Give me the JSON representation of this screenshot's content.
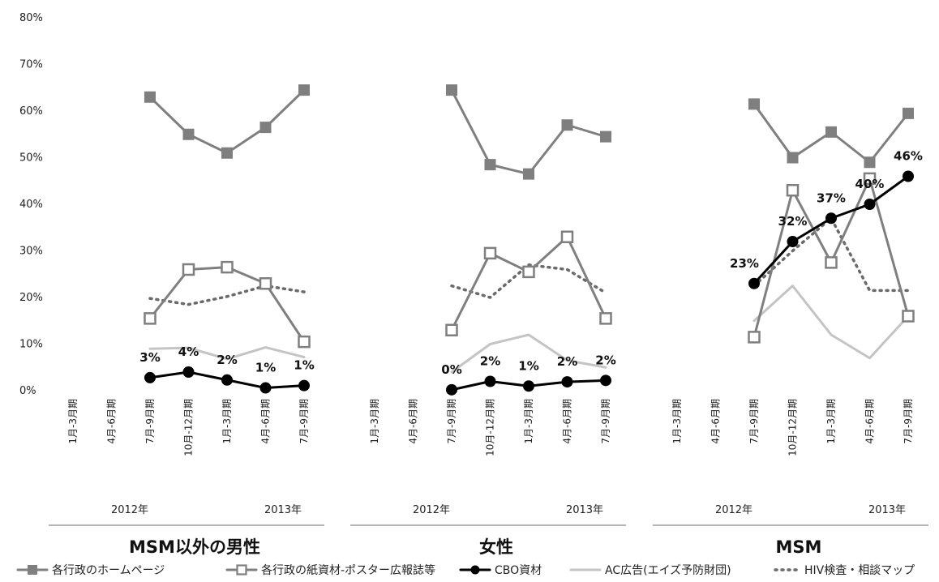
{
  "chart_data": {
    "type": "line",
    "y_axis": {
      "ylim": [
        0,
        80
      ],
      "ticks": [
        "80%",
        "70%",
        "60%",
        "50%",
        "40%",
        "30%",
        "20%",
        "10%",
        "0%"
      ]
    },
    "categories": [
      "1月-3月期",
      "4月-6月期",
      "7月-9月期",
      "10月-12月期",
      "1月-3月期",
      "4月-6月期",
      "7月-9月期"
    ],
    "years": [
      "2012年",
      "2013年"
    ],
    "legend": [
      "各行政のホームページ",
      "各行政の紙資材-ポスター広報誌等",
      "CBO資材",
      "AC広告(エイズ予防財団)",
      "HIV検査・相談マップ"
    ],
    "panels": [
      {
        "title": "MSM以外の男性",
        "series": [
          {
            "name": "各行政のホームページ",
            "values": [
              null,
              null,
              63,
              55,
              51,
              56.5,
              64.5
            ]
          },
          {
            "name": "各行政の紙資材-ポスター広報誌等",
            "values": [
              null,
              null,
              15.5,
              26,
              26.5,
              23,
              10.5
            ]
          },
          {
            "name": "CBO資材",
            "values": [
              null,
              null,
              2.8,
              4,
              2.3,
              0.6,
              1.1
            ],
            "labels": [
              "",
              "",
              "3%",
              "4%",
              "2%",
              "1%",
              "1%"
            ]
          },
          {
            "name": "AC広告(エイズ予防財団)",
            "values": [
              null,
              null,
              9,
              9.2,
              6.8,
              9.3,
              7.2
            ]
          },
          {
            "name": "HIV検査・相談マップ",
            "values": [
              null,
              null,
              19.8,
              18.5,
              20.2,
              22.5,
              21.2
            ]
          }
        ]
      },
      {
        "title": "女性",
        "series": [
          {
            "name": "各行政のホームページ",
            "values": [
              null,
              null,
              64.5,
              48.5,
              46.5,
              57,
              54.5
            ]
          },
          {
            "name": "各行政の紙資材-ポスター広報誌等",
            "values": [
              null,
              null,
              13,
              29.5,
              25.5,
              33,
              15.5
            ]
          },
          {
            "name": "CBO資材",
            "values": [
              null,
              null,
              0.2,
              2,
              1,
              1.9,
              2.2
            ],
            "labels": [
              "",
              "",
              "0%",
              "2%",
              "1%",
              "2%",
              "2%"
            ]
          },
          {
            "name": "AC広告(エイズ予防財団)",
            "values": [
              null,
              null,
              4,
              10,
              12,
              6.5,
              5
            ]
          },
          {
            "name": "HIV検査・相談マップ",
            "values": [
              null,
              null,
              22.5,
              20,
              27,
              26,
              21
            ]
          }
        ]
      },
      {
        "title": "MSM",
        "series": [
          {
            "name": "各行政のホームページ",
            "values": [
              null,
              null,
              61.5,
              50,
              55.5,
              49,
              59.5
            ]
          },
          {
            "name": "各行政の紙資材-ポスター広報誌等",
            "values": [
              null,
              null,
              11.5,
              43,
              27.5,
              45.5,
              16
            ]
          },
          {
            "name": "CBO資材",
            "values": [
              null,
              null,
              23,
              32,
              37,
              40,
              46
            ],
            "labels": [
              "",
              "",
              "23%",
              "32%",
              "37%",
              "40%",
              "46%"
            ]
          },
          {
            "name": "AC広告(エイズ予防財団)",
            "values": [
              null,
              null,
              15,
              22.5,
              12,
              7,
              16
            ]
          },
          {
            "name": "HIV検査・相談マップ",
            "values": [
              null,
              null,
              22.5,
              30,
              37,
              21.5,
              21.5
            ]
          }
        ]
      }
    ]
  }
}
